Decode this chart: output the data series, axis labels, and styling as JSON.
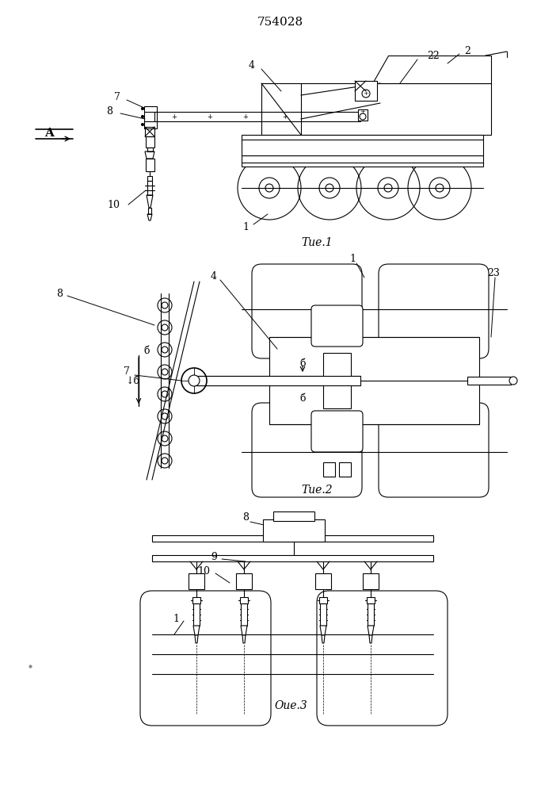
{
  "title": "754028",
  "title_fontsize": 11,
  "fig1_caption": "Τие.1",
  "fig2_caption": "Τие.2",
  "fig3_caption": "Оие.3",
  "bg_color": "#ffffff",
  "line_color": "#000000",
  "line_width": 0.8,
  "fig_width": 7.07,
  "fig_height": 10.0
}
